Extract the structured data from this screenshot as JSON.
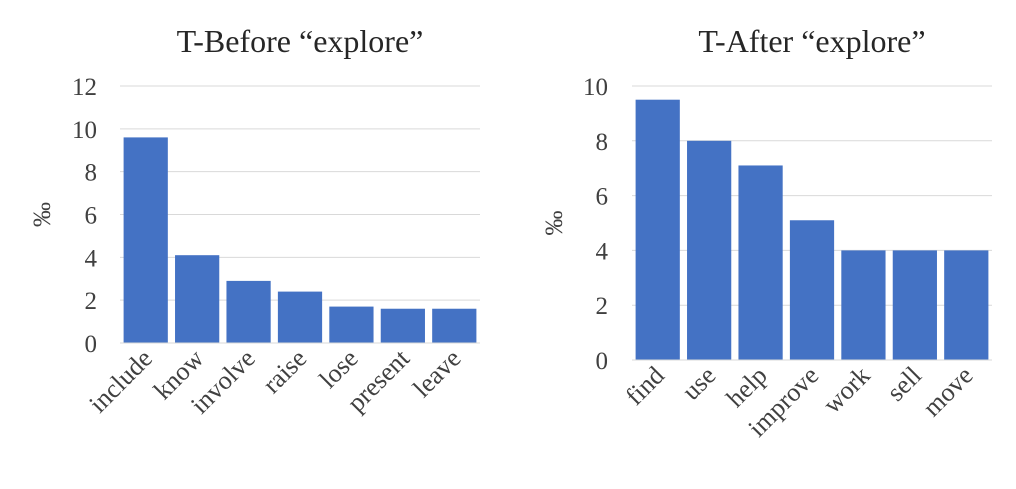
{
  "chart_data": [
    {
      "type": "bar",
      "title": "T-Before “explore”",
      "xlabel": "",
      "ylabel": "‰",
      "categories": [
        "include",
        "know",
        "involve",
        "raise",
        "lose",
        "present",
        "leave"
      ],
      "values": [
        9.6,
        4.1,
        2.9,
        2.4,
        1.7,
        1.6,
        1.6
      ],
      "ylim": [
        0,
        12
      ],
      "yticks": [
        0,
        2,
        4,
        6,
        8,
        10,
        12
      ],
      "grid": true,
      "color": "#4472C4"
    },
    {
      "type": "bar",
      "title": "T-After “explore”",
      "xlabel": "",
      "ylabel": "‰",
      "categories": [
        "find",
        "use",
        "help",
        "improve",
        "work",
        "sell",
        "move"
      ],
      "values": [
        9.5,
        8.0,
        7.1,
        5.1,
        4.0,
        4.0,
        4.0
      ],
      "ylim": [
        0,
        10
      ],
      "yticks": [
        0,
        2,
        4,
        6,
        8,
        10
      ],
      "grid": true,
      "color": "#4472C4"
    }
  ]
}
